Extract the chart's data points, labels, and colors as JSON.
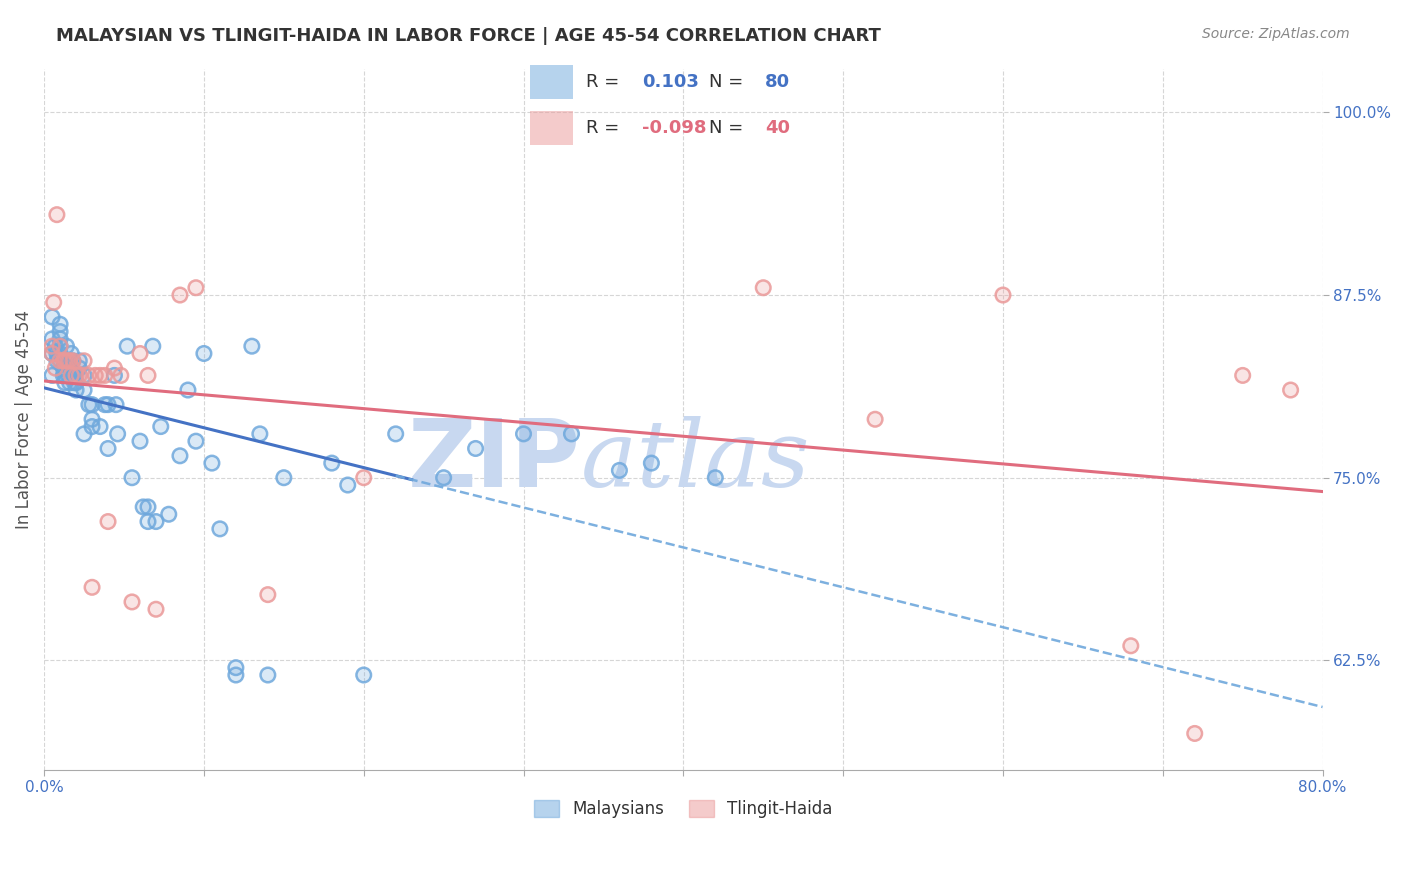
{
  "title": "MALAYSIAN VS TLINGIT-HAIDA IN LABOR FORCE | AGE 45-54 CORRELATION CHART",
  "source": "Source: ZipAtlas.com",
  "ylabel": "In Labor Force | Age 45-54",
  "xlim": [
    0.0,
    0.8
  ],
  "ylim": [
    0.55,
    1.03
  ],
  "xticks": [
    0.0,
    0.1,
    0.2,
    0.3,
    0.4,
    0.5,
    0.6,
    0.7,
    0.8
  ],
  "xticklabels": [
    "0.0%",
    "",
    "",
    "",
    "",
    "",
    "",
    "",
    "80.0%"
  ],
  "yticks": [
    0.625,
    0.75,
    0.875,
    1.0
  ],
  "yticklabels": [
    "62.5%",
    "75.0%",
    "87.5%",
    "100.0%"
  ],
  "blue_color": "#6fa8dc",
  "pink_color": "#ea9999",
  "trend_blue": "#4472c4",
  "trend_pink": "#e06c7e",
  "watermark_zip": "ZIP",
  "watermark_atlas": "atlas",
  "watermark_color": "#c8d8f0",
  "background": "#ffffff",
  "grid_color": "#cccccc",
  "axis_label_color": "#4472c4",
  "blue_x": [
    0.005,
    0.005,
    0.005,
    0.005,
    0.007,
    0.008,
    0.008,
    0.01,
    0.01,
    0.01,
    0.01,
    0.01,
    0.01,
    0.012,
    0.012,
    0.013,
    0.013,
    0.014,
    0.014,
    0.015,
    0.015,
    0.016,
    0.016,
    0.016,
    0.017,
    0.018,
    0.018,
    0.019,
    0.019,
    0.02,
    0.02,
    0.022,
    0.022,
    0.025,
    0.025,
    0.025,
    0.028,
    0.03,
    0.03,
    0.03,
    0.035,
    0.038,
    0.04,
    0.04,
    0.044,
    0.045,
    0.046,
    0.052,
    0.055,
    0.06,
    0.062,
    0.065,
    0.065,
    0.068,
    0.07,
    0.073,
    0.078,
    0.085,
    0.09,
    0.095,
    0.1,
    0.105,
    0.11,
    0.12,
    0.12,
    0.13,
    0.135,
    0.14,
    0.15,
    0.18,
    0.19,
    0.2,
    0.22,
    0.25,
    0.27,
    0.3,
    0.33,
    0.36,
    0.38,
    0.42
  ],
  "blue_y": [
    0.82,
    0.835,
    0.845,
    0.86,
    0.84,
    0.83,
    0.835,
    0.83,
    0.835,
    0.84,
    0.845,
    0.85,
    0.855,
    0.82,
    0.825,
    0.815,
    0.82,
    0.83,
    0.84,
    0.82,
    0.83,
    0.815,
    0.825,
    0.83,
    0.835,
    0.82,
    0.83,
    0.815,
    0.82,
    0.81,
    0.815,
    0.825,
    0.83,
    0.78,
    0.81,
    0.82,
    0.8,
    0.785,
    0.79,
    0.8,
    0.785,
    0.8,
    0.77,
    0.8,
    0.82,
    0.8,
    0.78,
    0.84,
    0.75,
    0.775,
    0.73,
    0.72,
    0.73,
    0.84,
    0.72,
    0.785,
    0.725,
    0.765,
    0.81,
    0.775,
    0.835,
    0.76,
    0.715,
    0.615,
    0.62,
    0.84,
    0.78,
    0.615,
    0.75,
    0.76,
    0.745,
    0.615,
    0.78,
    0.75,
    0.77,
    0.78,
    0.78,
    0.755,
    0.76,
    0.75
  ],
  "pink_x": [
    0.005,
    0.005,
    0.006,
    0.007,
    0.008,
    0.01,
    0.01,
    0.012,
    0.013,
    0.014,
    0.015,
    0.016,
    0.017,
    0.018,
    0.02,
    0.022,
    0.025,
    0.028,
    0.03,
    0.032,
    0.035,
    0.038,
    0.04,
    0.044,
    0.048,
    0.055,
    0.06,
    0.065,
    0.07,
    0.085,
    0.095,
    0.14,
    0.2,
    0.45,
    0.52,
    0.6,
    0.68,
    0.72,
    0.75,
    0.78
  ],
  "pink_y": [
    0.84,
    0.835,
    0.87,
    0.825,
    0.93,
    0.84,
    0.83,
    0.83,
    0.83,
    0.83,
    0.83,
    0.83,
    0.82,
    0.83,
    0.82,
    0.82,
    0.83,
    0.82,
    0.675,
    0.82,
    0.82,
    0.82,
    0.72,
    0.825,
    0.82,
    0.665,
    0.835,
    0.82,
    0.66,
    0.875,
    0.88,
    0.67,
    0.75,
    0.88,
    0.79,
    0.875,
    0.635,
    0.575,
    0.82,
    0.81
  ]
}
